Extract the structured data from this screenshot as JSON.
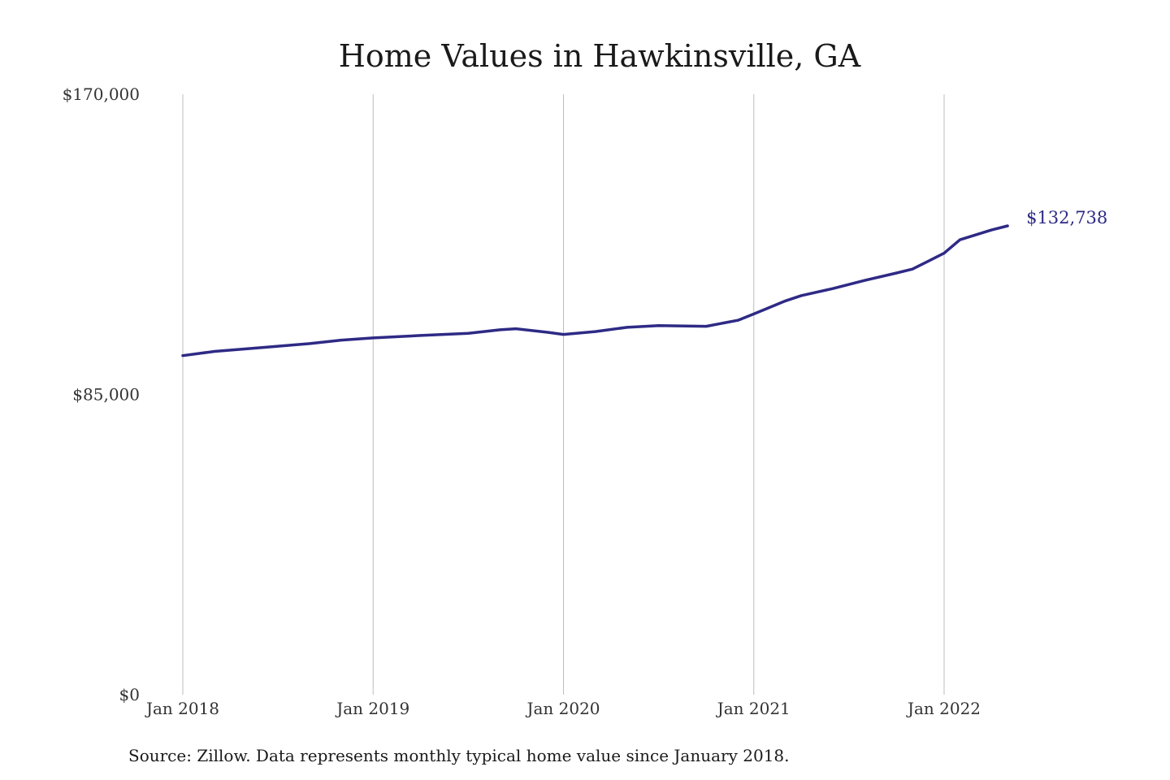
{
  "chart_data": {
    "type": "line",
    "title": "Home Values in Hawkinsville, GA",
    "xlabel": "",
    "ylabel": "",
    "ylim": [
      0,
      170000
    ],
    "y_ticks": [
      {
        "value": 0,
        "label": "$0"
      },
      {
        "value": 85000,
        "label": "$85,000"
      },
      {
        "value": 170000,
        "label": "$170,000"
      }
    ],
    "x_ticks": [
      {
        "value": "2018-01",
        "label": "Jan 2018"
      },
      {
        "value": "2019-01",
        "label": "Jan 2019"
      },
      {
        "value": "2020-01",
        "label": "Jan 2020"
      },
      {
        "value": "2021-01",
        "label": "Jan 2021"
      },
      {
        "value": "2022-01",
        "label": "Jan 2022"
      }
    ],
    "grid": "vertical",
    "line_color": "#2e2a85",
    "series": [
      {
        "x": [
          "2018-01",
          "2018-03",
          "2018-06",
          "2018-09",
          "2018-11",
          "2019-01",
          "2019-04",
          "2019-07",
          "2019-09",
          "2019-10",
          "2019-12",
          "2020-01",
          "2020-03",
          "2020-05",
          "2020-07",
          "2020-10",
          "2020-12",
          "2021-01",
          "2021-03",
          "2021-04",
          "2021-06",
          "2021-08",
          "2021-10",
          "2021-11",
          "2022-01",
          "2022-02",
          "2022-04",
          "2022-05"
        ],
        "values": [
          96000,
          97200,
          98300,
          99400,
          100400,
          101000,
          101700,
          102300,
          103300,
          103600,
          102600,
          102000,
          102800,
          104000,
          104500,
          104300,
          106000,
          107800,
          111500,
          113000,
          115000,
          117300,
          119400,
          120500,
          125000,
          128800,
          131600,
          132738
        ]
      }
    ],
    "end_label": "$132,738",
    "source": "Source: Zillow. Data represents monthly typical home value since January 2018."
  }
}
